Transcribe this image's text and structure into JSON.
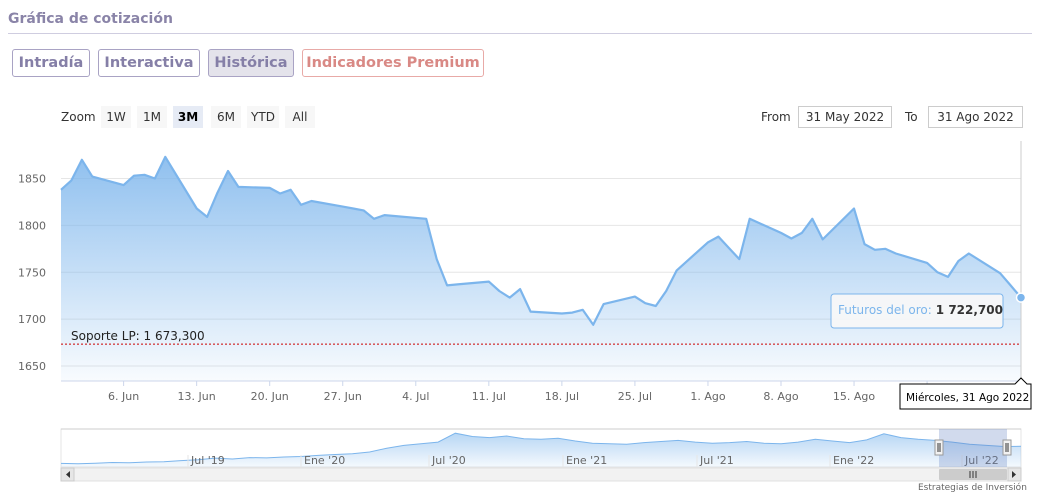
{
  "title": "Gráfica de cotización",
  "tabs": [
    {
      "label": "Intradía"
    },
    {
      "label": "Interactiva"
    },
    {
      "label": "Histórica"
    },
    {
      "label": "Indicadores Premium"
    }
  ],
  "range_selector": {
    "zoom_label": "Zoom",
    "buttons": [
      "1W",
      "1M",
      "3M",
      "6M",
      "YTD",
      "All"
    ],
    "active": "3M",
    "from_label": "From",
    "from_value": "31 May 2022",
    "to_label": "To",
    "to_value": "31 Ago 2022"
  },
  "tooltip": {
    "series_label": "Futuros del oro:",
    "value": "1 722,700"
  },
  "crosshair_label": "Miércoles, 31 Ago 2022",
  "support_label": "Soporte LP: 1 673,300",
  "watermark": "Estrategias de Inversión",
  "colors": {
    "line": "#7cb5ec",
    "support": "#cc0000",
    "tab_border": "#a9a3c4",
    "tab_text": "#857fa7",
    "premium": "#d98985"
  },
  "chart_data": {
    "type": "area",
    "series_name": "Futuros del oro",
    "x_start": "2022-05-31",
    "x_end": "2022-08-31",
    "x": [
      "2022-05-31",
      "2022-06-01",
      "2022-06-02",
      "2022-06-03",
      "2022-06-06",
      "2022-06-07",
      "2022-06-08",
      "2022-06-09",
      "2022-06-10",
      "2022-06-13",
      "2022-06-14",
      "2022-06-15",
      "2022-06-16",
      "2022-06-17",
      "2022-06-20",
      "2022-06-21",
      "2022-06-22",
      "2022-06-23",
      "2022-06-24",
      "2022-06-27",
      "2022-06-28",
      "2022-06-29",
      "2022-06-30",
      "2022-07-01",
      "2022-07-05",
      "2022-07-06",
      "2022-07-07",
      "2022-07-08",
      "2022-07-11",
      "2022-07-12",
      "2022-07-13",
      "2022-07-14",
      "2022-07-15",
      "2022-07-18",
      "2022-07-19",
      "2022-07-20",
      "2022-07-21",
      "2022-07-22",
      "2022-07-25",
      "2022-07-26",
      "2022-07-27",
      "2022-07-28",
      "2022-07-29",
      "2022-08-01",
      "2022-08-02",
      "2022-08-03",
      "2022-08-04",
      "2022-08-05",
      "2022-08-08",
      "2022-08-09",
      "2022-08-10",
      "2022-08-11",
      "2022-08-12",
      "2022-08-15",
      "2022-08-16",
      "2022-08-17",
      "2022-08-18",
      "2022-08-19",
      "2022-08-22",
      "2022-08-23",
      "2022-08-24",
      "2022-08-25",
      "2022-08-26",
      "2022-08-29",
      "2022-08-30",
      "2022-08-31"
    ],
    "values": [
      1838,
      1848,
      1870,
      1852,
      1843,
      1853,
      1854,
      1850,
      1873,
      1818,
      1809,
      1835,
      1858,
      1841,
      1840,
      1834,
      1838,
      1822,
      1826,
      1820,
      1818,
      1816,
      1807,
      1811,
      1807,
      1764,
      1736,
      1737,
      1740,
      1730,
      1723,
      1732,
      1708,
      1706,
      1707,
      1710,
      1694,
      1716,
      1724,
      1717,
      1714,
      1730,
      1752,
      1782,
      1788,
      1776,
      1764,
      1807,
      1792,
      1786,
      1792,
      1807,
      1785,
      1818,
      1780,
      1774,
      1775,
      1770,
      1760,
      1750,
      1745,
      1762,
      1770,
      1749,
      1736,
      1723
    ],
    "ylim": [
      1634,
      1890
    ],
    "yticks": [
      1650,
      1700,
      1750,
      1800,
      1850
    ],
    "xtick_labels": [
      "6. Jun",
      "13. Jun",
      "20. Jun",
      "27. Jun",
      "4. Jul",
      "11. Jul",
      "18. Jul",
      "25. Jul",
      "1. Ago",
      "8. Ago",
      "15. Ago",
      "22. Ago"
    ],
    "xtick_dates": [
      "2022-06-06",
      "2022-06-13",
      "2022-06-20",
      "2022-06-27",
      "2022-07-04",
      "2022-07-11",
      "2022-07-18",
      "2022-07-25",
      "2022-08-01",
      "2022-08-08",
      "2022-08-15",
      "2022-08-22"
    ],
    "support_level": 1673.3,
    "grid": true,
    "navigator": {
      "x_labels": [
        "Jul '19",
        "Ene '20",
        "Jul '20",
        "Ene '21",
        "Jul '21",
        "Ene '22",
        "Jul '22"
      ],
      "values": [
        1415,
        1410,
        1418,
        1432,
        1425,
        1440,
        1445,
        1465,
        1480,
        1510,
        1495,
        1520,
        1515,
        1530,
        1540,
        1560,
        1575,
        1590,
        1620,
        1690,
        1740,
        1770,
        1800,
        1960,
        1900,
        1880,
        1910,
        1860,
        1850,
        1870,
        1820,
        1780,
        1770,
        1760,
        1790,
        1810,
        1830,
        1800,
        1780,
        1790,
        1810,
        1780,
        1770,
        1800,
        1850,
        1820,
        1790,
        1840,
        1950,
        1880,
        1850,
        1830,
        1800,
        1760,
        1740,
        1720,
        1723
      ]
    }
  }
}
